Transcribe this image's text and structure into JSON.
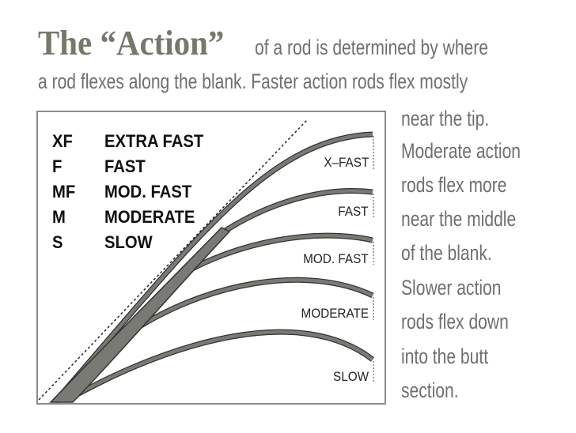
{
  "heading": {
    "title": "The “Action”",
    "line1": "of a rod is determined by where",
    "line2": "a rod flexes along the blank. Faster action rods flex mostly"
  },
  "side_text": [
    "near the tip.",
    "Moderate action",
    "rods flex more",
    "near the middle",
    "of the blank.",
    "Slower action",
    "rods flex down",
    "into the butt",
    "section."
  ],
  "legend": [
    {
      "abbr": "XF",
      "name": "EXTRA FAST"
    },
    {
      "abbr": "F",
      "name": "FAST"
    },
    {
      "abbr": "MF",
      "name": "MOD. FAST"
    },
    {
      "abbr": "M",
      "name": "MODERATE"
    },
    {
      "abbr": "S",
      "name": "SLOW"
    }
  ],
  "curve_labels": [
    "X–FAST",
    "FAST",
    "MOD. FAST",
    "MODERATE",
    "SLOW"
  ],
  "colors": {
    "rod": "#7a7a74",
    "rod_outline": "#333333",
    "text": "#6f6f6f",
    "title": "#77776c"
  }
}
